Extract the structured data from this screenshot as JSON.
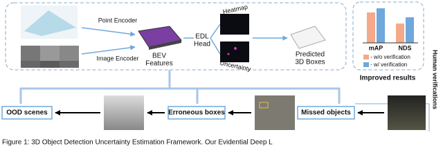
{
  "top": {
    "point_encoder": "Point Encoder",
    "image_encoder": "Image Encoder",
    "bev_features": "BEV\nFeatures",
    "edl_head": "EDL\nHead",
    "heatmap": "Heatmap",
    "uncertainty": "Uncertainty",
    "predicted": "Predicted\n3D Boxes"
  },
  "results": {
    "mAP": "mAP",
    "NDS": "NDS",
    "legend_without": "- w/o verification",
    "legend_with": "- w/ verification",
    "caption": "Improved results"
  },
  "side": {
    "human": "Human verifications"
  },
  "bottom": {
    "ood": "OOD scenes",
    "erroneous": "Erroneous boxes",
    "missed": "Missed objects"
  },
  "caption": "Figure 1: 3D Object Detection Uncertainty Estimation Framework. Our Evidential Deep L"
}
